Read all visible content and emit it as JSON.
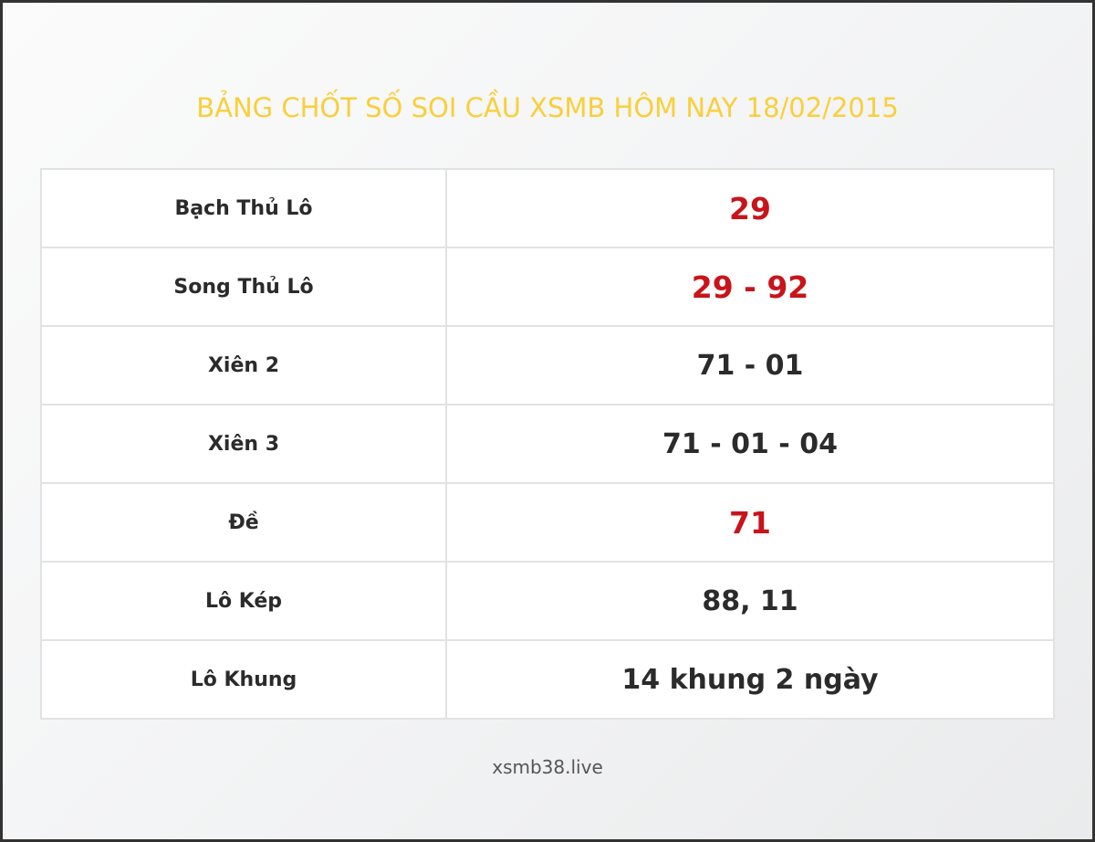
{
  "title": "BẢNG CHỐT SỐ SOI CẦU XSMB HÔM NAY 18/02/2015",
  "colors": {
    "title": "#f9cf3b",
    "highlight": "#c8141b",
    "text": "#2b2b2b"
  },
  "rows": [
    {
      "label": "Bạch Thủ Lô",
      "value": "29",
      "highlight": true
    },
    {
      "label": "Song Thủ Lô",
      "value": "29 - 92",
      "highlight": true
    },
    {
      "label": "Xiên 2",
      "value": "71 - 01",
      "highlight": false
    },
    {
      "label": "Xiên 3",
      "value": "71 - 01 - 04",
      "highlight": false
    },
    {
      "label": "Đề",
      "value": "71",
      "highlight": true
    },
    {
      "label": "Lô Kép",
      "value": "88, 11",
      "highlight": false
    },
    {
      "label": "Lô Khung",
      "value": "14 khung 2 ngày",
      "highlight": false
    }
  ],
  "footer": "xsmb38.live"
}
